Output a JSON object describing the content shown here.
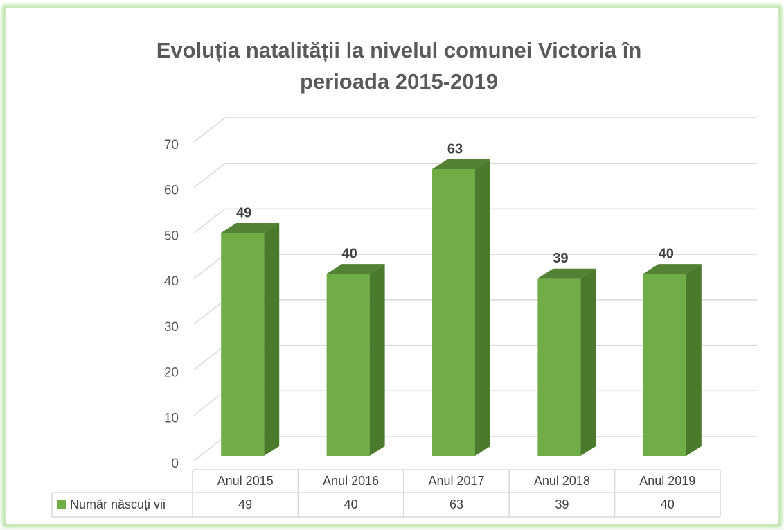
{
  "chart_data": {
    "type": "bar3d",
    "title": "Evoluția natalității la nivelul comunei Victoria în perioada 2015-2019",
    "categories": [
      "Anul 2015",
      "Anul 2016",
      "Anul 2017",
      "Anul 2018",
      "Anul 2019"
    ],
    "series": [
      {
        "name": "Număr născuți vii",
        "color": "#70ad47",
        "values": [
          49,
          40,
          63,
          39,
          40
        ]
      }
    ],
    "ylim": [
      0,
      70
    ],
    "yticks": [
      0,
      10,
      20,
      30,
      40,
      50,
      60,
      70
    ],
    "grid": true,
    "data_table": true
  }
}
